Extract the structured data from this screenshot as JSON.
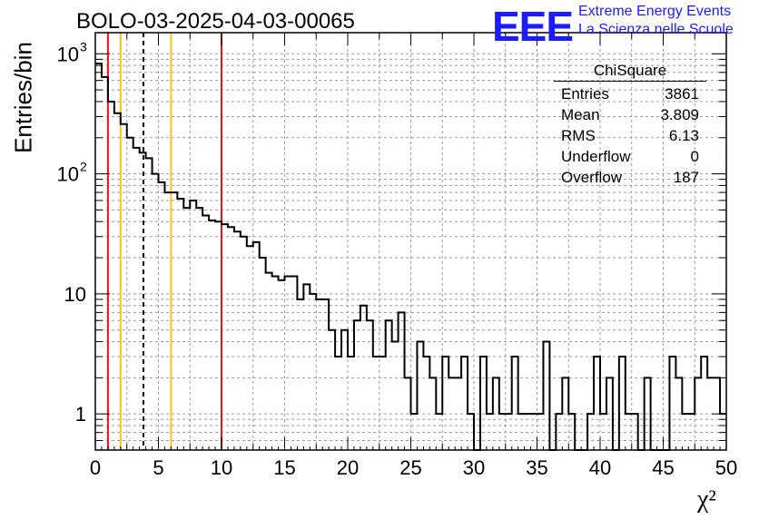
{
  "chart_data": {
    "type": "histogram",
    "title": "BOLO-03-2025-04-03-00065",
    "xlabel": "χ²",
    "ylabel": "Entries/bin",
    "xlim": [
      0,
      50
    ],
    "ylim": [
      0.5,
      1500
    ],
    "yscale": "log",
    "grid": true,
    "bin_width": 0.5,
    "x_ticks": [
      "0",
      "5",
      "10",
      "15",
      "20",
      "25",
      "30",
      "35",
      "40",
      "45",
      "50"
    ],
    "y_ticks": [
      {
        "value": 1000,
        "label": "10",
        "exp": "3"
      },
      {
        "value": 100,
        "label": "10",
        "exp": "2"
      },
      {
        "value": 10,
        "label": "10",
        "exp": ""
      },
      {
        "value": 1,
        "label": "1",
        "exp": ""
      }
    ],
    "counts": [
      830,
      640,
      400,
      320,
      260,
      200,
      165,
      150,
      135,
      100,
      85,
      70,
      70,
      62,
      52,
      60,
      52,
      45,
      41,
      40,
      38,
      36,
      33,
      30,
      25,
      27,
      20,
      15,
      14,
      13,
      14,
      14,
      9,
      12,
      10,
      9,
      9,
      5,
      3,
      5,
      3,
      6,
      8,
      6,
      3,
      3,
      6,
      4,
      7,
      2,
      1,
      4,
      3,
      2,
      1,
      3,
      2,
      2,
      3,
      1,
      0.5,
      3,
      1,
      2,
      1,
      1,
      3,
      1,
      1,
      1,
      1,
      4,
      0.5,
      1,
      2,
      1,
      0.5,
      0.5,
      1,
      3,
      1,
      2,
      0.5,
      3,
      1,
      1,
      0.5,
      2,
      0.5,
      0.5,
      0.5,
      3,
      2,
      1,
      1,
      2,
      3,
      2,
      2,
      1
    ],
    "vertical_lines": [
      {
        "x": 1,
        "color": "#e3171a",
        "style": "solid"
      },
      {
        "x": 2,
        "color": "#f5c41a",
        "style": "solid"
      },
      {
        "x": 3.809,
        "color": "#000000",
        "style": "dashed"
      },
      {
        "x": 6,
        "color": "#f5c41a",
        "style": "solid"
      },
      {
        "x": 10,
        "color": "#e3171a",
        "style": "solid"
      }
    ]
  },
  "logo": {
    "text": "EEE",
    "line1": "Extreme Energy Events",
    "line2": "La Scienza nelle Scuole",
    "color": "#1c1cff"
  },
  "stats": {
    "title": "ChiSquare",
    "rows": [
      {
        "label": "Entries",
        "value": "3861"
      },
      {
        "label": "Mean",
        "value": "3.809"
      },
      {
        "label": "RMS",
        "value": "6.13"
      },
      {
        "label": "Underflow",
        "value": "0"
      },
      {
        "label": "Overflow",
        "value": "187"
      }
    ]
  }
}
